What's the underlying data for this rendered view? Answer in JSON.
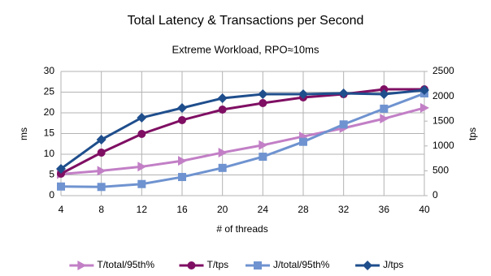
{
  "chart_data": {
    "type": "line",
    "title": "Total Latency & Transactions per Second",
    "subtitle": "Extreme Workload, RPO≈10ms",
    "x_label": "# of threads",
    "y_label": "ms",
    "y2_label": "tps",
    "x": [
      4,
      8,
      12,
      16,
      20,
      24,
      28,
      32,
      36,
      40
    ],
    "xlim": [
      4,
      40
    ],
    "xticks": [
      4,
      8,
      12,
      16,
      20,
      24,
      28,
      32,
      36,
      40
    ],
    "ylim": [
      0,
      30
    ],
    "yticks": [
      0,
      5,
      10,
      15,
      20,
      25,
      30
    ],
    "y2lim": [
      0,
      2500
    ],
    "y2ticks": [
      0,
      500,
      1000,
      1500,
      2000,
      2500
    ],
    "grid": true,
    "legend": "bottom",
    "series": [
      {
        "name": "T/total/95th%",
        "color": "#c27fc6",
        "marker": "triangle",
        "values": [
          5.2,
          6.0,
          7.0,
          8.4,
          10.4,
          12.2,
          14.3,
          16.3,
          18.6,
          21.2
        ]
      },
      {
        "name": "T/tps",
        "color": "#7f0f63",
        "marker": "circle",
        "axis": "y2",
        "values": [
          441,
          866,
          1242,
          1520,
          1732,
          1863,
          1977,
          2042,
          2140,
          2140
        ]
      },
      {
        "name": "J/total/95th%",
        "color": "#6f93d0",
        "marker": "square",
        "values": [
          2.2,
          2.1,
          2.8,
          4.5,
          6.7,
          9.4,
          13.0,
          17.2,
          21.0,
          24.7
        ]
      },
      {
        "name": "J/tps",
        "color": "#1f4e8c",
        "marker": "diamond",
        "axis": "y2",
        "values": [
          540,
          1127,
          1569,
          1765,
          1961,
          2042,
          2042,
          2059,
          2042,
          2124
        ]
      }
    ]
  }
}
